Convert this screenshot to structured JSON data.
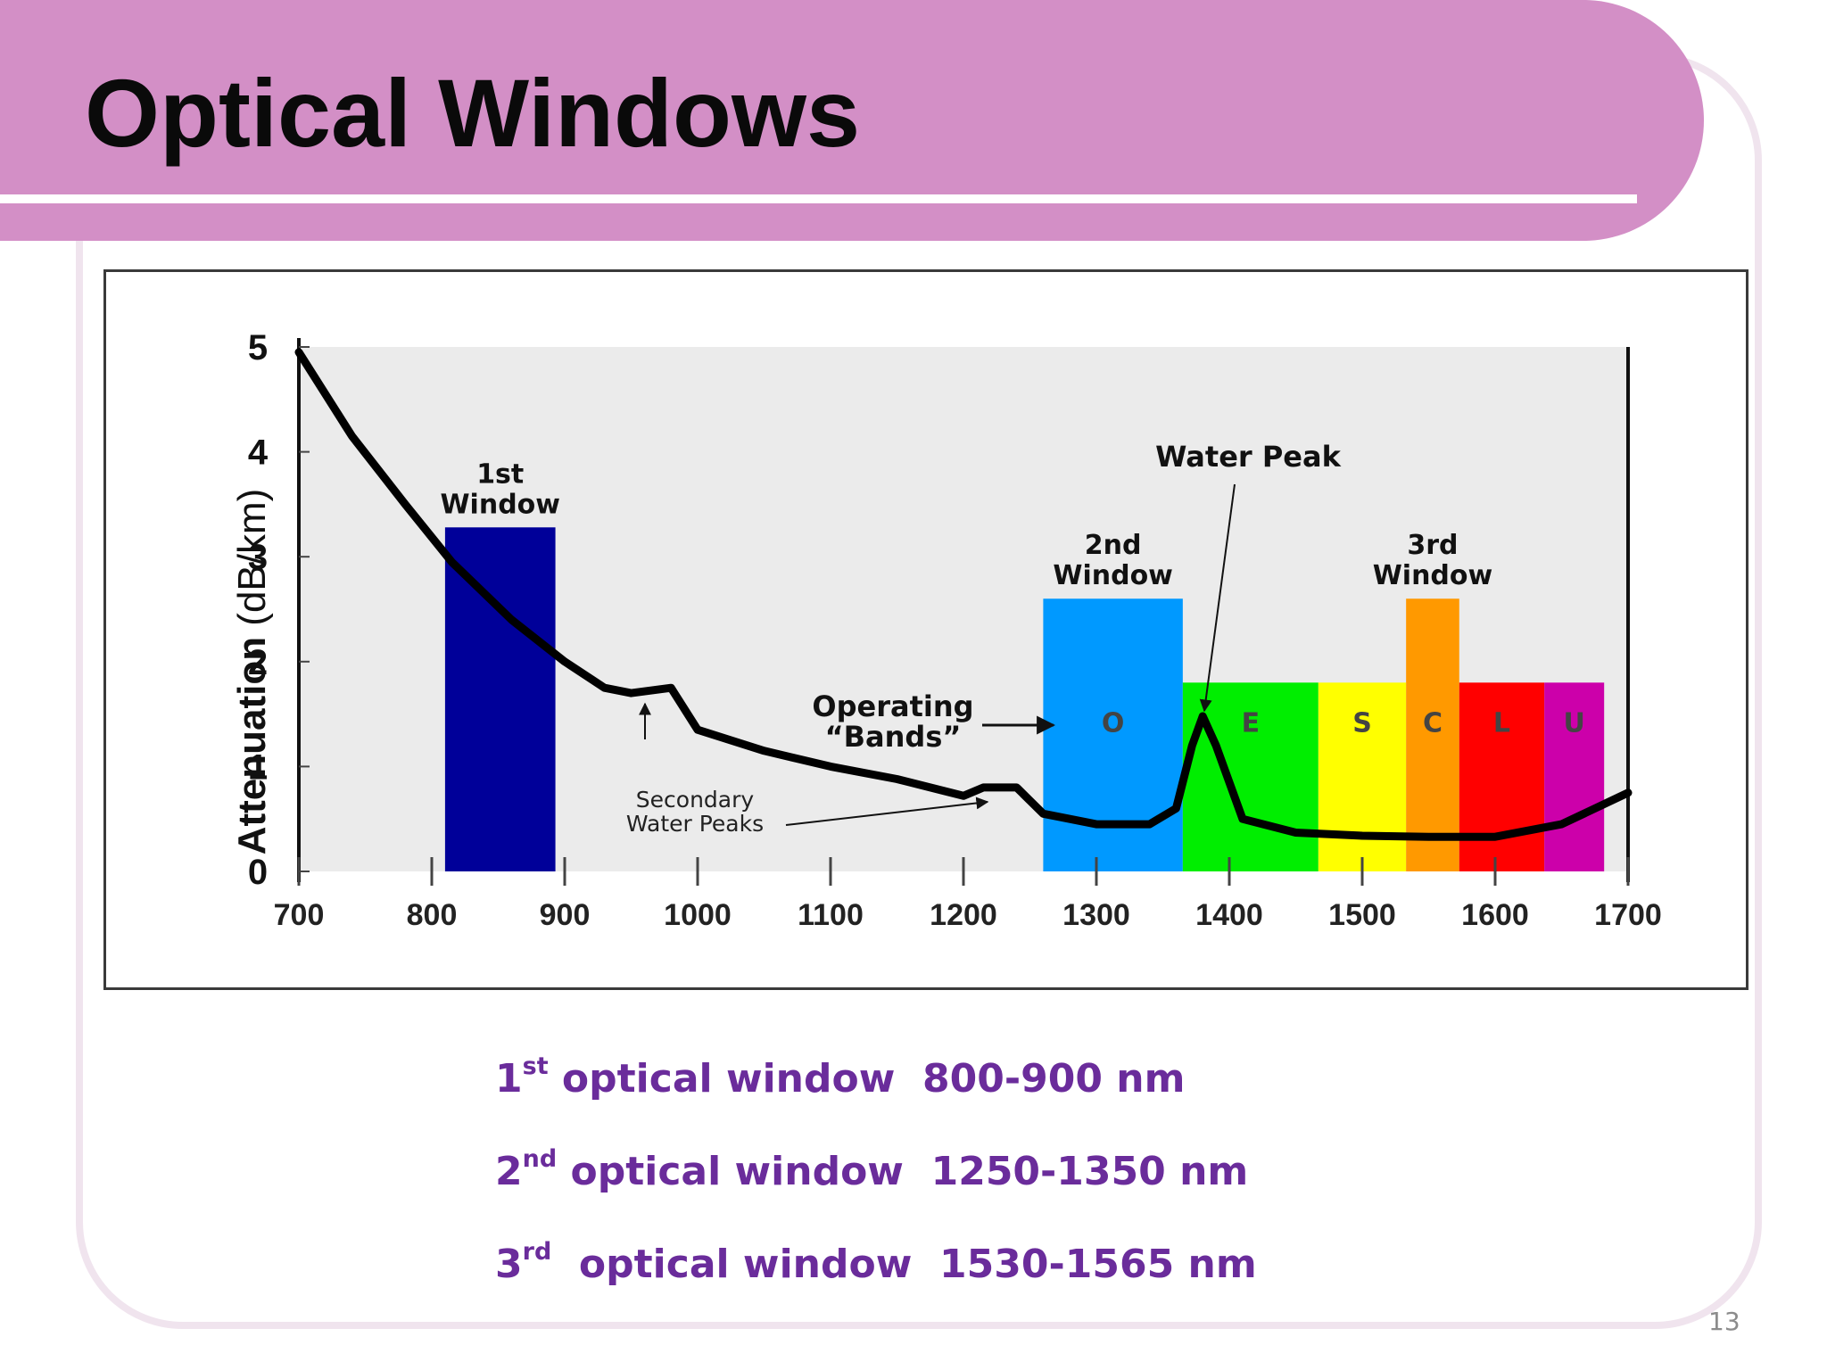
{
  "slide": {
    "title": "Optical Windows",
    "page_number": "13"
  },
  "captions": [
    {
      "ordinal": "1",
      "suffix": "st",
      "text": " optical window  800-900 nm"
    },
    {
      "ordinal": "2",
      "suffix": "nd",
      "text": " optical window  1250-1350 nm"
    },
    {
      "ordinal": "3",
      "suffix": "rd",
      "text": "  optical window  1530-1565 nm"
    }
  ],
  "chart_data": {
    "type": "line",
    "ylabel_bold": "Attenuation",
    "ylabel_unit": " (dB/km)",
    "xlabel": "",
    "xlim": [
      700,
      1700
    ],
    "ylim": [
      0,
      5
    ],
    "x_ticks": [
      700,
      800,
      900,
      1000,
      1100,
      1200,
      1300,
      1400,
      1500,
      1600,
      1700
    ],
    "y_ticks": [
      0,
      1,
      2,
      3,
      4,
      5
    ],
    "series": [
      {
        "x": [
          700,
          740,
          780,
          815,
          860,
          900,
          930,
          950,
          980,
          990,
          1000,
          1050,
          1100,
          1150,
          1200,
          1215,
          1240,
          1260,
          1300,
          1340,
          1360,
          1372,
          1380,
          1390,
          1410,
          1450,
          1500,
          1550,
          1600,
          1650,
          1700
        ],
        "y": [
          4.95,
          4.15,
          3.5,
          2.95,
          2.4,
          2.0,
          1.75,
          1.7,
          1.75,
          1.55,
          1.35,
          1.15,
          1.0,
          0.88,
          0.72,
          0.8,
          0.8,
          0.55,
          0.45,
          0.45,
          0.6,
          1.2,
          1.48,
          1.2,
          0.5,
          0.37,
          0.34,
          0.33,
          0.33,
          0.45,
          0.75
        ]
      }
    ],
    "regions": [
      {
        "label": "1st\nWindow",
        "band": "",
        "x0": 810,
        "x1": 893,
        "top": 3.28,
        "color": "#000099"
      },
      {
        "label": "2nd\nWindow",
        "band": "O",
        "x0": 1260,
        "x1": 1365,
        "top": 2.6,
        "color": "#0099ff"
      },
      {
        "label": "",
        "band": "E",
        "x0": 1365,
        "x1": 1467,
        "top": 1.8,
        "color": "#00ee00"
      },
      {
        "label": "",
        "band": "S",
        "x0": 1467,
        "x1": 1533,
        "top": 1.8,
        "color": "#ffff00"
      },
      {
        "label": "3rd\nWindow",
        "band": "C",
        "x0": 1533,
        "x1": 1573,
        "top": 2.6,
        "color": "#ff9900"
      },
      {
        "label": "",
        "band": "L",
        "x0": 1573,
        "x1": 1637,
        "top": 1.8,
        "color": "#ff0000"
      },
      {
        "label": "",
        "band": "U",
        "x0": 1637,
        "x1": 1682,
        "top": 1.8,
        "color": "#cc00aa"
      }
    ],
    "annotations": [
      {
        "text": "Water Peak"
      },
      {
        "text": "Operating\n“Bands”"
      },
      {
        "text": "Secondary\nWater Peaks"
      }
    ]
  }
}
